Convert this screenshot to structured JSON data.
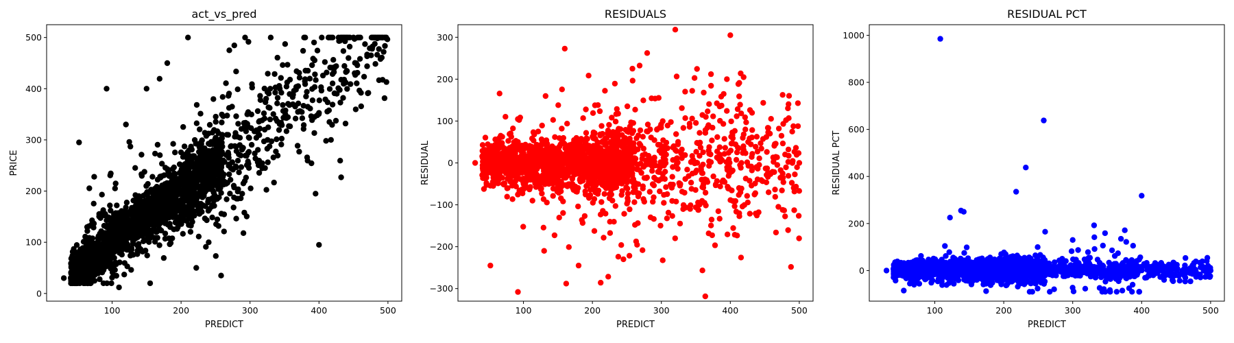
{
  "chart_data": [
    {
      "type": "scatter",
      "title": "act_vs_pred",
      "xlabel": "PREDICT",
      "ylabel": "PRICE",
      "xlim": [
        5,
        520
      ],
      "ylim": [
        -15,
        525
      ],
      "xticks": [
        "100",
        "200",
        "300",
        "400",
        "500"
      ],
      "yticks": [
        "0",
        "100",
        "200",
        "300",
        "400",
        "500"
      ],
      "color": "#000000",
      "grid": false,
      "legend": "none",
      "highlights": [
        [
          52,
          295
        ],
        [
          92,
          400
        ],
        [
          110,
          12
        ],
        [
          210,
          500
        ],
        [
          222,
          50
        ],
        [
          258,
          35
        ],
        [
          400,
          95
        ],
        [
          395,
          195
        ],
        [
          450,
          500
        ],
        [
          495,
          500
        ],
        [
          30,
          30
        ],
        [
          45,
          40
        ],
        [
          270,
          475
        ],
        [
          330,
          500
        ],
        [
          380,
          500
        ],
        [
          180,
          450
        ],
        [
          150,
          400
        ],
        [
          120,
          330
        ]
      ],
      "clusters": [
        {
          "n": 1400,
          "xmin": 40,
          "xmax": 260,
          "noise": 28,
          "slope": 1.0,
          "intercept": 0,
          "ymin": 20,
          "ymax": 500
        },
        {
          "n": 450,
          "xmin": 200,
          "xmax": 500,
          "noise": 38,
          "slope": 1.0,
          "intercept": 0,
          "ymin": 20,
          "ymax": 500
        },
        {
          "n": 250,
          "xmin": 60,
          "xmax": 300,
          "noise": 75,
          "slope": 1.0,
          "intercept": 10,
          "ymin": 20,
          "ymax": 500
        }
      ]
    },
    {
      "type": "scatter",
      "title": "RESIDUALS",
      "xlabel": "PREDICT",
      "ylabel": "RESIDUAL",
      "xlim": [
        5,
        520
      ],
      "ylim": [
        -330,
        330
      ],
      "xticks": [
        "100",
        "200",
        "300",
        "400",
        "500"
      ],
      "yticks": [
        "−300",
        "−200",
        "−100",
        "0",
        "100",
        "200",
        "300"
      ],
      "color": "#ff0000",
      "grid": false,
      "legend": "none",
      "highlights": [
        [
          400,
          305
        ],
        [
          92,
          -308
        ],
        [
          162,
          -288
        ],
        [
          212,
          -286
        ],
        [
          52,
          -245
        ],
        [
          258,
          225
        ],
        [
          372,
          212
        ],
        [
          395,
          200
        ],
        [
          500,
          0
        ],
        [
          490,
          0
        ],
        [
          30,
          0
        ],
        [
          245,
          -230
        ],
        [
          130,
          -210
        ],
        [
          320,
          -180
        ],
        [
          180,
          -245
        ]
      ],
      "clusters": [
        {
          "n": 1400,
          "xmin": 40,
          "xmax": 260,
          "noise": 30,
          "slope": 0,
          "intercept": 0,
          "ymin": -320,
          "ymax": 320
        },
        {
          "n": 500,
          "xmin": 200,
          "xmax": 500,
          "noise": 45,
          "slope": 0,
          "intercept": 0,
          "ymin": -320,
          "ymax": 320
        },
        {
          "n": 250,
          "xmin": 60,
          "xmax": 420,
          "noise": 90,
          "slope": 0,
          "intercept": 0,
          "ymin": -320,
          "ymax": 320
        }
      ]
    },
    {
      "type": "scatter",
      "title": "RESIDUAL PCT",
      "xlabel": "PREDICT",
      "ylabel": "RESIDUAL PCT",
      "xlim": [
        5,
        520
      ],
      "ylim": [
        -130,
        1045
      ],
      "xticks": [
        "100",
        "200",
        "300",
        "400",
        "500"
      ],
      "yticks": [
        "0",
        "200",
        "400",
        "600",
        "800",
        "1000"
      ],
      "color": "#0000ff",
      "grid": false,
      "legend": "none",
      "highlights": [
        [
          108,
          985
        ],
        [
          258,
          638
        ],
        [
          232,
          438
        ],
        [
          218,
          335
        ],
        [
          400,
          318
        ],
        [
          138,
          255
        ],
        [
          142,
          250
        ],
        [
          122,
          225
        ],
        [
          260,
          165
        ],
        [
          55,
          -85
        ],
        [
          70,
          -60
        ],
        [
          500,
          0
        ],
        [
          490,
          0
        ],
        [
          30,
          0
        ],
        [
          370,
          135
        ],
        [
          300,
          130
        ]
      ],
      "clusters": [
        {
          "n": 1500,
          "xmin": 40,
          "xmax": 260,
          "noise": 22,
          "slope": 0,
          "intercept": 5,
          "ymin": -90,
          "ymax": 200
        },
        {
          "n": 450,
          "xmin": 200,
          "xmax": 500,
          "noise": 12,
          "slope": 0,
          "intercept": 0,
          "ymin": -60,
          "ymax": 140
        },
        {
          "n": 200,
          "xmin": 60,
          "xmax": 400,
          "noise": 45,
          "slope": 0,
          "intercept": 10,
          "ymin": -90,
          "ymax": 200
        }
      ]
    }
  ]
}
